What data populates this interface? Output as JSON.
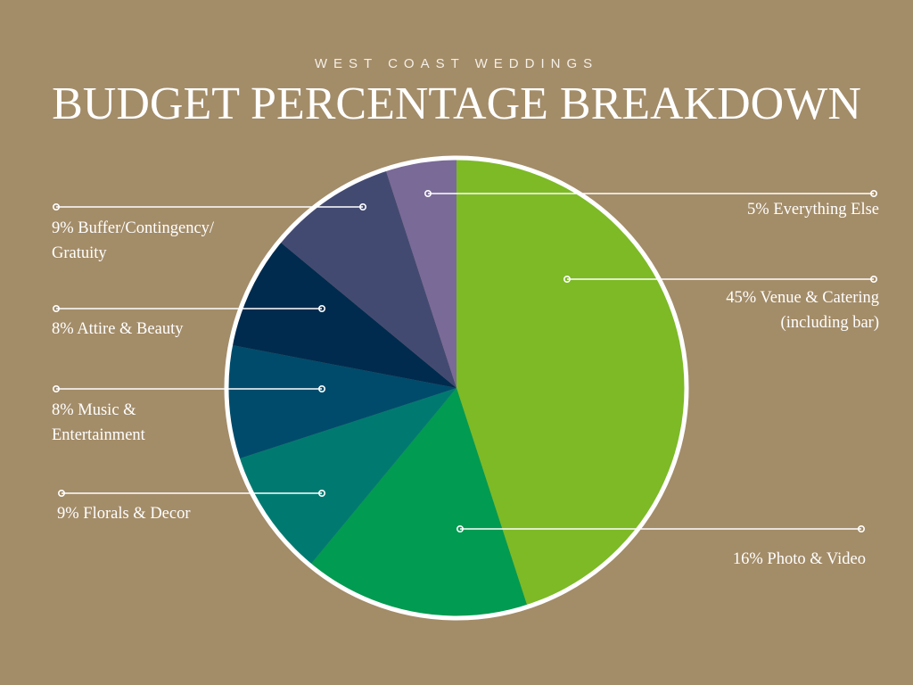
{
  "header": {
    "subtitle": "WEST COAST WEDDINGS",
    "title": "BUDGET PERCENTAGE BREAKDOWN"
  },
  "colors": {
    "background": "#a38c68",
    "text": "#ffffff",
    "outline": "#ffffff"
  },
  "chart_data": {
    "type": "pie",
    "title": "BUDGET PERCENTAGE BREAKDOWN",
    "slices": [
      {
        "label": "45% Venue & Catering (including bar)",
        "lines": [
          "45% Venue & Catering",
          "(including bar)"
        ],
        "value": 45,
        "color": "#7dba26"
      },
      {
        "label": "16% Photo & Video",
        "lines": [
          "16% Photo & Video"
        ],
        "value": 16,
        "color": "#019b51"
      },
      {
        "label": "9% Florals & Decor",
        "lines": [
          "9% Florals & Decor"
        ],
        "value": 9,
        "color": "#007a71"
      },
      {
        "label": "8% Music & Entertainment",
        "lines": [
          "8% Music &",
          "Entertainment"
        ],
        "value": 8,
        "color": "#004b6b"
      },
      {
        "label": "8%  Attire & Beauty",
        "lines": [
          "8%  Attire & Beauty"
        ],
        "value": 8,
        "color": "#002b4e"
      },
      {
        "label": "9% Buffer/Contingency/ Gratuity",
        "lines": [
          "9% Buffer/Contingency/",
          "Gratuity"
        ],
        "value": 9,
        "color": "#434a72"
      },
      {
        "label": "5% Everything Else",
        "lines": [
          "5% Everything Else"
        ],
        "value": 5,
        "color": "#7a6a98"
      }
    ]
  }
}
